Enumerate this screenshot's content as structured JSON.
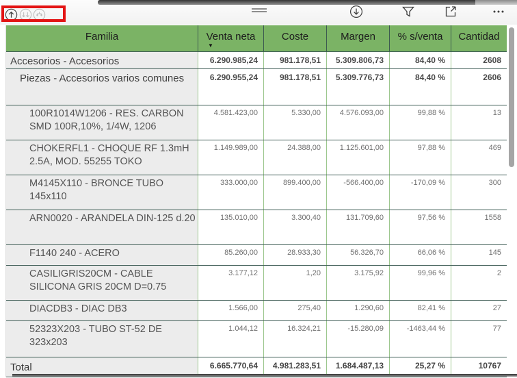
{
  "colors": {
    "header_green": "#7bb365",
    "annotation_red": "#e31414",
    "row_separator": "#3e5c55",
    "gridline_green": "#9cc78e",
    "label_cell_bg": "#ececec"
  },
  "toolbar": {
    "left_icons": [
      {
        "name": "drill-up-icon",
        "enabled": true
      },
      {
        "name": "drill-down-double-icon",
        "enabled": false
      },
      {
        "name": "expand-all-icon",
        "enabled": false
      }
    ],
    "right_icons": [
      {
        "name": "drill-down-toggle-icon"
      },
      {
        "name": "filter-icon"
      },
      {
        "name": "focus-mode-icon"
      },
      {
        "name": "more-options-icon"
      }
    ]
  },
  "table": {
    "columns": [
      "Familia",
      "Venta neta",
      "Coste",
      "Margen",
      "% s/venta",
      "Cantidad"
    ],
    "sort_column_index": 1,
    "sort_glyph": "▼",
    "rows": [
      {
        "label": "Accesorios - Accesorios",
        "level": 0,
        "bold": true,
        "values": [
          "6.290.985,24",
          "981.178,51",
          "5.309.806,73",
          "84,40 %",
          "2608"
        ]
      },
      {
        "label": "Piezas - Accesorios varios comunes",
        "level": 1,
        "bold": true,
        "values": [
          "6.290.955,24",
          "981.178,51",
          "5.309.776,73",
          "84,40 %",
          "2606"
        ]
      },
      {
        "label": "100R1014W1206 - RES. CARBON SMD 100R,10%, 1/4W, 1206",
        "level": 2,
        "bold": false,
        "values": [
          "4.581.423,00",
          "5.330,00",
          "4.576.093,00",
          "99,88 %",
          "13"
        ]
      },
      {
        "label": "CHOKERFL1 - CHOQUE RF 1.3mH 2.5A, MOD. 55255 TOKO",
        "level": 2,
        "bold": false,
        "values": [
          "1.149.989,00",
          "24.388,00",
          "1.125.601,00",
          "97,88 %",
          "469"
        ]
      },
      {
        "label": "M4145X110 - BRONCE TUBO 145x110",
        "level": 2,
        "bold": false,
        "values": [
          "333.000,00",
          "899.400,00",
          "-566.400,00",
          "-170,09 %",
          "300"
        ]
      },
      {
        "label": "ARN0020 - ARANDELA DIN-125 d.20",
        "level": 2,
        "bold": false,
        "values": [
          "135.010,00",
          "3.300,40",
          "131.709,60",
          "97,56 %",
          "1558"
        ]
      },
      {
        "label": "F1140 240 - ACERO",
        "level": 2,
        "bold": false,
        "values": [
          "85.260,00",
          "28.933,30",
          "56.326,70",
          "66,06 %",
          "145"
        ]
      },
      {
        "label": "CASILIGRIS20CM - CABLE SILICONA GRIS 20CM D=0.75",
        "level": 2,
        "bold": false,
        "values": [
          "3.177,12",
          "1,20",
          "3.175,92",
          "99,96 %",
          "2"
        ]
      },
      {
        "label": "DIACDB3 - DIAC DB3",
        "level": 2,
        "bold": false,
        "values": [
          "1.566,00",
          "275,40",
          "1.290,60",
          "82,41 %",
          "27"
        ]
      },
      {
        "label": "52323X203 - TUBO ST-52 DE 323x203",
        "level": 2,
        "bold": false,
        "values": [
          "1.044,12",
          "16.324,21",
          "-15.280,09",
          "-1463,44 %",
          "77"
        ]
      }
    ],
    "total": {
      "label": "Total",
      "values": [
        "6.665.770,64",
        "4.981.283,51",
        "1.684.487,13",
        "25,27 %",
        "10767"
      ]
    }
  }
}
